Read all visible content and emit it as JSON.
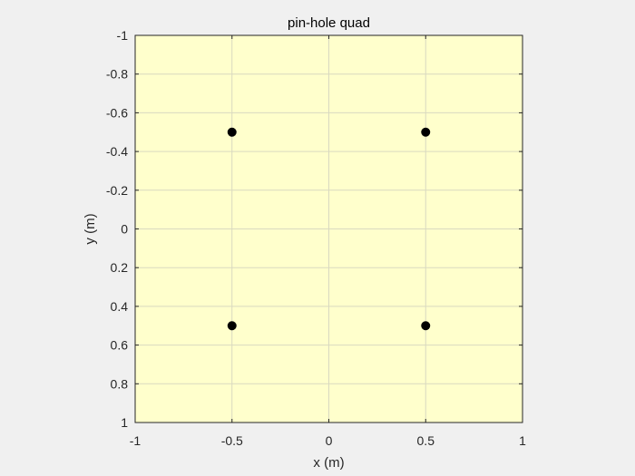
{
  "chart_data": {
    "type": "scatter",
    "title": "pin-hole quad",
    "xlabel": "x (m)",
    "ylabel": "y (m)",
    "xlim": [
      -1,
      1
    ],
    "ylim": [
      -1,
      1
    ],
    "y_reversed": true,
    "xticks": [
      -1,
      -0.5,
      0,
      0.5,
      1
    ],
    "xtick_labels": [
      "-1",
      "-0.5",
      "0",
      "0.5",
      "1"
    ],
    "yticks": [
      -1,
      -0.8,
      -0.6,
      -0.4,
      -0.2,
      0,
      0.2,
      0.4,
      0.6,
      0.8,
      1
    ],
    "ytick_labels": [
      "-1",
      "-0.8",
      "-0.6",
      "-0.4",
      "-0.2",
      "0",
      "0.2",
      "0.4",
      "0.6",
      "0.8",
      "1"
    ],
    "grid": true,
    "series": [
      {
        "x": [
          -0.5,
          0.5,
          -0.5,
          0.5
        ],
        "y": [
          -0.5,
          -0.5,
          0.5,
          0.5
        ],
        "marker_color": "#000000"
      }
    ],
    "plot_background": "#ffffcc",
    "figure_background": "#f0f0f0",
    "grid_color": "#d9d9c0",
    "axis_color": "#262626"
  }
}
